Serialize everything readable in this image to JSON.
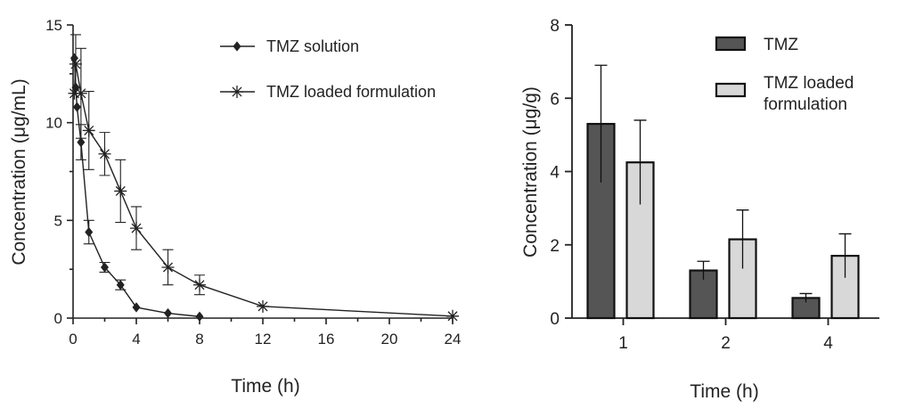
{
  "chart_data": [
    {
      "type": "line",
      "xlabel": "Time (h)",
      "ylabel": "Concentration (μg/mL)",
      "xlim": [
        0,
        24
      ],
      "ylim": [
        0,
        15
      ],
      "xticks": [
        0,
        4,
        8,
        12,
        16,
        20,
        24
      ],
      "yticks": [
        0,
        5,
        10,
        15
      ],
      "grid": false,
      "legend_position": "top-right",
      "series": [
        {
          "name": "TMZ solution",
          "marker": "diamond",
          "points": [
            {
              "x": 0.083,
              "y": 13.3,
              "err": 0
            },
            {
              "x": 0.167,
              "y": 11.8,
              "err": 0
            },
            {
              "x": 0.25,
              "y": 10.8,
              "err": 0
            },
            {
              "x": 0.5,
              "y": 9.0,
              "err": 0.9
            },
            {
              "x": 1,
              "y": 4.4,
              "err": 0.6
            },
            {
              "x": 2,
              "y": 2.6,
              "err": 0.25
            },
            {
              "x": 3,
              "y": 1.7,
              "err": 0.25
            },
            {
              "x": 4,
              "y": 0.55,
              "err": 0
            },
            {
              "x": 6,
              "y": 0.25,
              "err": 0
            },
            {
              "x": 8,
              "y": 0.08,
              "err": 0
            }
          ]
        },
        {
          "name": "TMZ loaded formulation",
          "marker": "asterisk",
          "points": [
            {
              "x": 0.083,
              "y": 11.5,
              "err": 0
            },
            {
              "x": 0.167,
              "y": 13.0,
              "err": 1.5
            },
            {
              "x": 0.5,
              "y": 11.5,
              "err": 2.3
            },
            {
              "x": 1,
              "y": 9.6,
              "err": 2.0
            },
            {
              "x": 2,
              "y": 8.4,
              "err": 1.1
            },
            {
              "x": 3,
              "y": 6.5,
              "err": 1.6
            },
            {
              "x": 4,
              "y": 4.6,
              "err": 1.1
            },
            {
              "x": 6,
              "y": 2.6,
              "err": 0.9
            },
            {
              "x": 8,
              "y": 1.7,
              "err": 0.5
            },
            {
              "x": 12,
              "y": 0.6,
              "err": 0
            },
            {
              "x": 24,
              "y": 0.1,
              "err": 0
            }
          ]
        }
      ]
    },
    {
      "type": "bar",
      "xlabel": "Time (h)",
      "ylabel": "Concentration (μg/g)",
      "categories": [
        "1",
        "2",
        "4"
      ],
      "ylim": [
        0,
        8
      ],
      "yticks": [
        0,
        2,
        4,
        6,
        8
      ],
      "grid": false,
      "legend_position": "top-right",
      "series": [
        {
          "name": "TMZ",
          "color": "#555555",
          "values": [
            5.3,
            1.3,
            0.55
          ],
          "errors": [
            1.6,
            0.25,
            0.12
          ]
        },
        {
          "name": "TMZ loaded formulation",
          "legend_lines": [
            "TMZ loaded",
            "formulation"
          ],
          "color": "#d8d8d8",
          "values": [
            4.25,
            2.15,
            1.7
          ],
          "errors": [
            1.15,
            0.8,
            0.6
          ]
        }
      ]
    }
  ]
}
